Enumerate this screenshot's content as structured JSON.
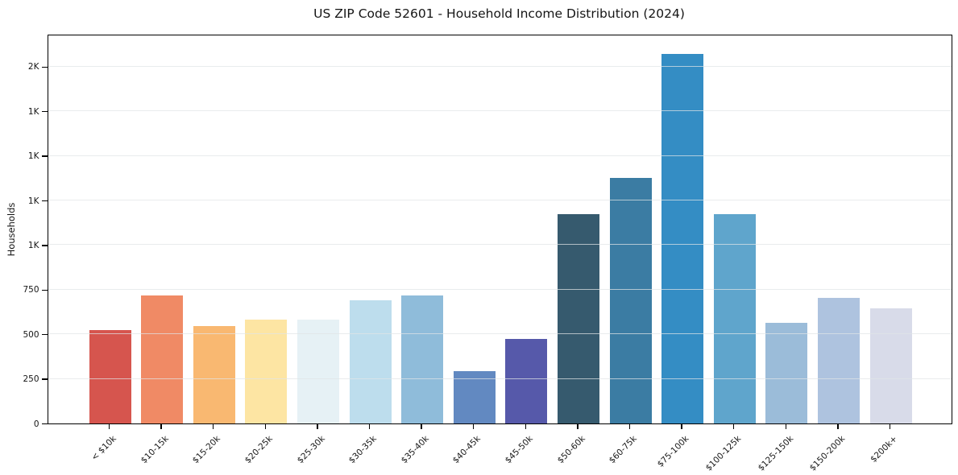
{
  "chart_data": {
    "type": "bar",
    "title": "US ZIP Code 52601 - Household Income Distribution (2024)",
    "xlabel": "",
    "ylabel": "Households",
    "categories": [
      "< $10k",
      "$10-15k",
      "$15-20k",
      "$20-25k",
      "$25-30k",
      "$30-35k",
      "$35-40k",
      "$40-45k",
      "$45-50k",
      "$50-60k",
      "$60-75k",
      "$75-100k",
      "$100-125k",
      "$125-150k",
      "$150-200k",
      "$200k+"
    ],
    "values": [
      522,
      715,
      545,
      580,
      578,
      688,
      715,
      291,
      471,
      1170,
      1375,
      2068,
      1172,
      562,
      702,
      645
    ],
    "bar_colors": [
      "#d6554e",
      "#f08a65",
      "#f9b871",
      "#fde5a3",
      "#e6f1f5",
      "#bddded",
      "#8fbcda",
      "#6289c1",
      "#5659aa",
      "#365a6e",
      "#3b7ca3",
      "#348dc4",
      "#5fa5cc",
      "#9bbcd9",
      "#aec3df",
      "#d8dbe9"
    ],
    "ylim": [
      0,
      2182
    ],
    "y_ticks": [
      {
        "value": 0,
        "label": "0"
      },
      {
        "value": 250,
        "label": "250"
      },
      {
        "value": 500,
        "label": "500"
      },
      {
        "value": 750,
        "label": "750"
      },
      {
        "value": 1000,
        "label": "1K"
      },
      {
        "value": 1250,
        "label": "1K"
      },
      {
        "value": 1500,
        "label": "1K"
      },
      {
        "value": 1750,
        "label": "1K"
      },
      {
        "value": 2000,
        "label": "2K"
      }
    ],
    "grid": "horizontal",
    "legend": "none",
    "background_color": "#ffffff",
    "frame_color": "#000000",
    "gridline_color": "#e5e8ea"
  }
}
